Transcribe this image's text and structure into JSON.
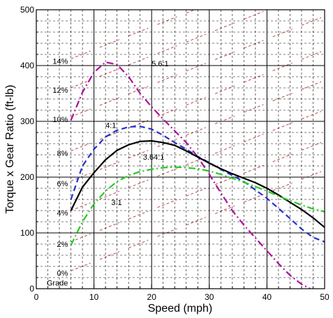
{
  "chart_data": {
    "type": "line",
    "xlabel": "Speed (mph)",
    "ylabel": "Torque x Gear Ratio (ft-lb)",
    "xlim": [
      0,
      50
    ],
    "ylim": [
      0,
      500
    ],
    "x_ticks": [
      "0",
      "10",
      "20",
      "30",
      "40",
      "50"
    ],
    "y_ticks": [
      "0",
      "100",
      "200",
      "300",
      "400",
      "500"
    ],
    "grid": true,
    "series": [
      {
        "name": "5.6:1",
        "color": "#aa1199",
        "dash": "dashdot",
        "points": [
          [
            6,
            302
          ],
          [
            8,
            352
          ],
          [
            10,
            388
          ],
          [
            12,
            406
          ],
          [
            14,
            402
          ],
          [
            16,
            380
          ],
          [
            18,
            350
          ],
          [
            20,
            326
          ],
          [
            22,
            304
          ],
          [
            24,
            283
          ],
          [
            26,
            262
          ],
          [
            28,
            236
          ],
          [
            30,
            205
          ],
          [
            32,
            172
          ],
          [
            34,
            140
          ],
          [
            36,
            114
          ],
          [
            38,
            91
          ],
          [
            40,
            68
          ],
          [
            42,
            45
          ],
          [
            44,
            24
          ],
          [
            46,
            8
          ],
          [
            47.5,
            0
          ]
        ]
      },
      {
        "name": "4:1",
        "color": "#2233cc",
        "dash": "dashed",
        "points": [
          [
            6,
            160
          ],
          [
            8,
            220
          ],
          [
            10,
            250
          ],
          [
            12,
            272
          ],
          [
            14,
            284
          ],
          [
            16,
            290
          ],
          [
            18,
            291
          ],
          [
            20,
            286
          ],
          [
            22,
            275
          ],
          [
            24,
            262
          ],
          [
            26,
            250
          ],
          [
            28,
            237
          ],
          [
            30,
            226
          ],
          [
            32,
            214
          ],
          [
            34,
            203
          ],
          [
            36,
            192
          ],
          [
            38,
            177
          ],
          [
            40,
            162
          ],
          [
            42,
            144
          ],
          [
            44,
            126
          ],
          [
            46,
            107
          ],
          [
            48,
            92
          ],
          [
            50,
            84
          ]
        ]
      },
      {
        "name": "3.64:1",
        "color": "#000000",
        "dash": "solid",
        "points": [
          [
            6,
            140
          ],
          [
            8,
            182
          ],
          [
            10,
            208
          ],
          [
            12,
            231
          ],
          [
            14,
            248
          ],
          [
            16,
            258
          ],
          [
            18,
            264
          ],
          [
            20,
            265
          ],
          [
            22,
            262
          ],
          [
            24,
            257
          ],
          [
            26,
            247
          ],
          [
            28,
            236
          ],
          [
            30,
            225
          ],
          [
            32,
            215
          ],
          [
            34,
            206
          ],
          [
            36,
            198
          ],
          [
            38,
            190
          ],
          [
            40,
            180
          ],
          [
            42,
            168
          ],
          [
            44,
            155
          ],
          [
            46,
            142
          ],
          [
            48,
            127
          ],
          [
            50,
            110
          ]
        ]
      },
      {
        "name": "3:1",
        "color": "#22cc22",
        "dash": "dashdot",
        "points": [
          [
            6,
            78
          ],
          [
            8,
            120
          ],
          [
            10,
            152
          ],
          [
            12,
            175
          ],
          [
            14,
            192
          ],
          [
            16,
            203
          ],
          [
            18,
            210
          ],
          [
            20,
            214
          ],
          [
            22,
            217
          ],
          [
            24,
            218
          ],
          [
            26,
            217
          ],
          [
            28,
            215
          ],
          [
            30,
            211
          ],
          [
            32,
            205
          ],
          [
            34,
            198
          ],
          [
            36,
            191
          ],
          [
            38,
            183
          ],
          [
            40,
            175
          ],
          [
            42,
            166
          ],
          [
            44,
            158
          ],
          [
            46,
            150
          ],
          [
            48,
            143
          ],
          [
            50,
            138
          ]
        ]
      }
    ],
    "curve_labels": [
      {
        "text": "5.6:1",
        "x": 20,
        "y": 404
      },
      {
        "text": "4:1",
        "x": 12,
        "y": 293
      },
      {
        "text": "3.64:1",
        "x": 18.5,
        "y": 236
      },
      {
        "text": "3:1",
        "x": 13,
        "y": 155
      }
    ],
    "grade_lines": {
      "color": "#aa2222",
      "percents": [
        "0%",
        "2%",
        "4%",
        "6%",
        "8%",
        "10%",
        "12%",
        "14%"
      ],
      "label_y": [
        28,
        80,
        136,
        189,
        243,
        304,
        356,
        408
      ],
      "label_x": 5.5,
      "slope_per_mph": 4.1,
      "grade_text": "Grade"
    }
  }
}
